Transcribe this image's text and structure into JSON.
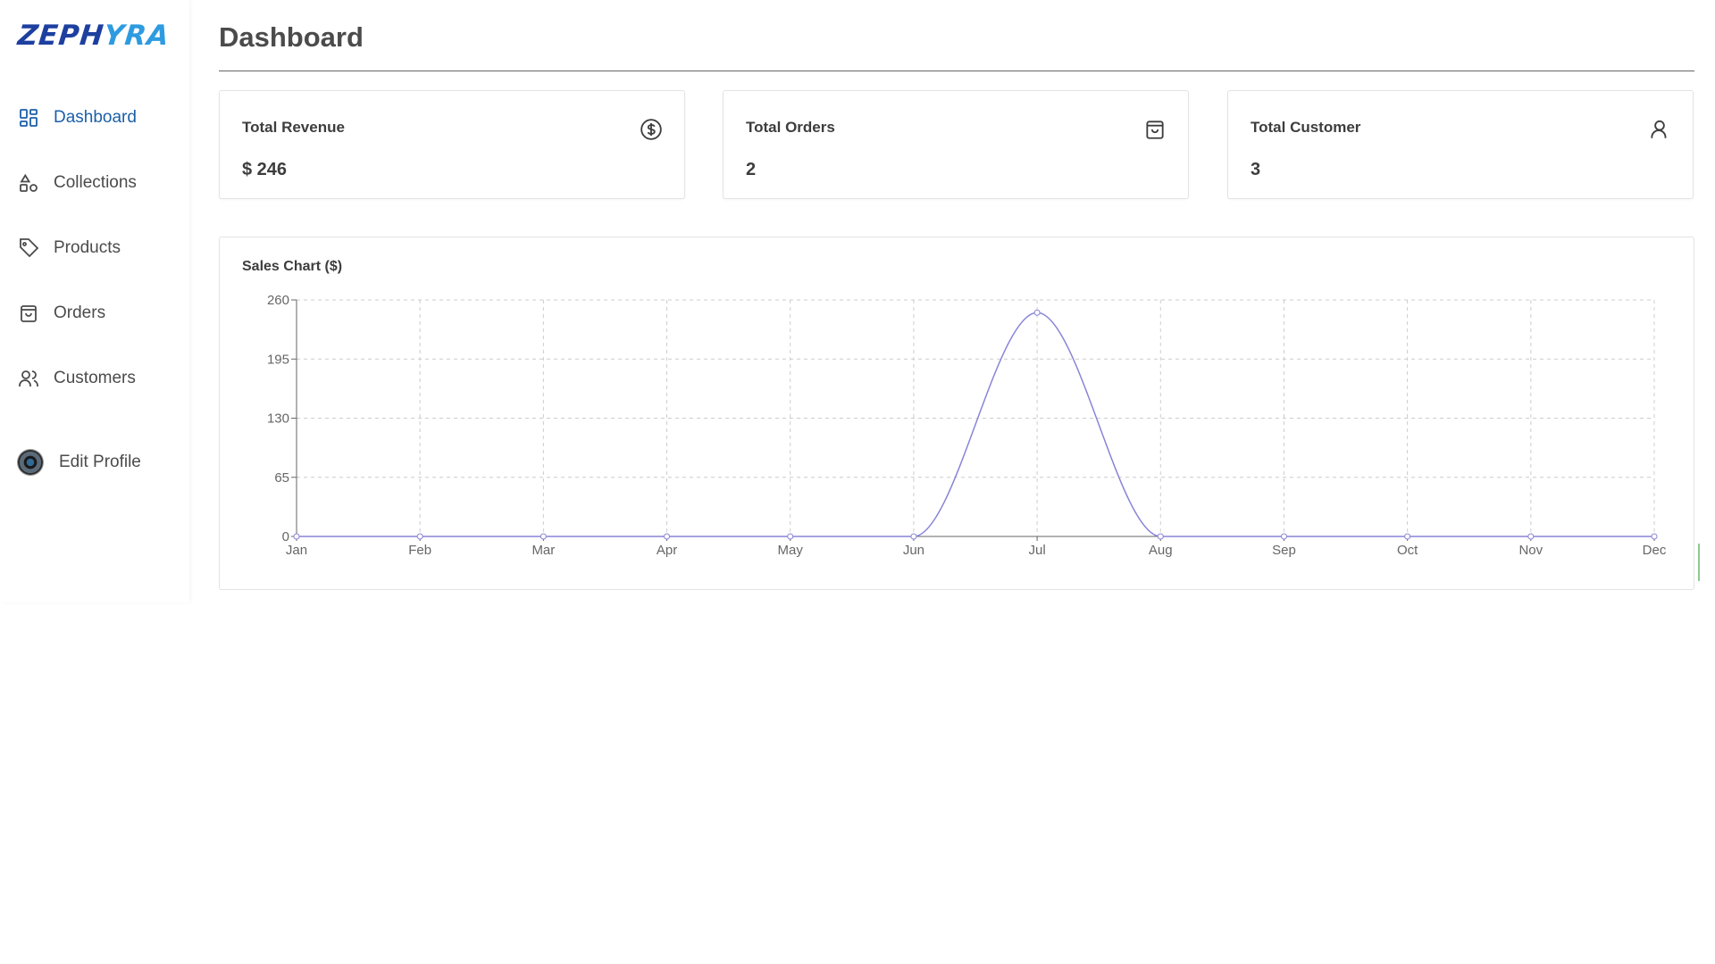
{
  "brand": {
    "name_part1": "ZEPH",
    "name_part2": "YRA"
  },
  "sidebar": {
    "items": [
      {
        "label": "Dashboard",
        "icon": "dashboard-icon",
        "active": true
      },
      {
        "label": "Collections",
        "icon": "shapes-icon",
        "active": false
      },
      {
        "label": "Products",
        "icon": "tag-icon",
        "active": false
      },
      {
        "label": "Orders",
        "icon": "shopping-bag-icon",
        "active": false
      },
      {
        "label": "Customers",
        "icon": "users-icon",
        "active": false
      }
    ],
    "profile": {
      "label": "Edit Profile",
      "icon": "avatar"
    }
  },
  "header": {
    "title": "Dashboard"
  },
  "cards": [
    {
      "label": "Total Revenue",
      "value": "$ 246",
      "icon": "dollar-circle-icon"
    },
    {
      "label": "Total Orders",
      "value": "2",
      "icon": "shopping-bag-icon"
    },
    {
      "label": "Total Customer",
      "value": "3",
      "icon": "user-icon"
    }
  ],
  "colors": {
    "accent": "#1c5fa8",
    "line": "#8884d8",
    "grid": "#cccccc"
  },
  "chart_data": {
    "type": "line",
    "title": "Sales Chart ($)",
    "xlabel": "",
    "ylabel": "",
    "categories": [
      "Jan",
      "Feb",
      "Mar",
      "Apr",
      "May",
      "Jun",
      "Jul",
      "Aug",
      "Sep",
      "Oct",
      "Nov",
      "Dec"
    ],
    "series": [
      {
        "values": [
          0,
          0,
          0,
          0,
          0,
          0,
          246,
          0,
          0,
          0,
          0,
          0
        ]
      }
    ],
    "ylim": [
      0,
      260
    ],
    "yticks": [
      0,
      65,
      130,
      195,
      260
    ],
    "grid": true,
    "smooth": true
  }
}
